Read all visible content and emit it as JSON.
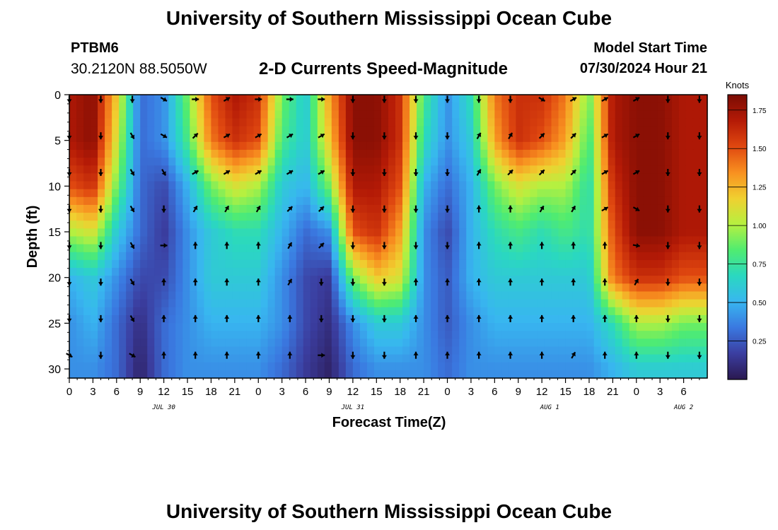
{
  "header": {
    "title": "University of Southern Mississippi Ocean Cube",
    "station_id": "PTBM6",
    "coordinates": "30.2120N  88.5050W",
    "subtitle": "2-D Currents Speed-Magnitude",
    "model_start_label": "Model Start Time",
    "model_start_value": "07/30/2024 Hour 21"
  },
  "footer": {
    "title": "University of Southern Mississippi Ocean Cube"
  },
  "chart_data": {
    "type": "heatmap",
    "title": "2-D Currents Speed-Magnitude",
    "xlabel": "Forecast Time(Z)",
    "ylabel": "Depth (ft)",
    "x_range_hours": [
      0,
      81
    ],
    "y_range_ft": [
      0,
      31
    ],
    "y_inverted": true,
    "x_tick_labels": [
      "0",
      "3",
      "6",
      "9",
      "12",
      "15",
      "18",
      "21",
      "0",
      "3",
      "6",
      "9",
      "12",
      "15",
      "18",
      "21",
      "0",
      "3",
      "6",
      "9",
      "12",
      "15",
      "18",
      "21",
      "0",
      "3",
      "6"
    ],
    "y_ticks": [
      0,
      5,
      10,
      15,
      20,
      25,
      30
    ],
    "date_labels": [
      {
        "hour": 12,
        "label": "JUL 30"
      },
      {
        "hour": 36,
        "label": "JUL 31"
      },
      {
        "hour": 61,
        "label": "AUG 1"
      },
      {
        "hour": 78,
        "label": "AUG 2"
      }
    ],
    "colorbar": {
      "label": "Knots",
      "min": 0,
      "max": 1.85,
      "ticks": [
        "0.25",
        "0.50",
        "0.75",
        "1.00",
        "1.25",
        "1.50",
        "1.75"
      ],
      "colors": [
        "#2a1850",
        "#3b3ea0",
        "#3a78e0",
        "#38b6f0",
        "#2ad8c0",
        "#50ec70",
        "#b6f040",
        "#f0d030",
        "#f89020",
        "#e04810",
        "#b41a06",
        "#7a0c04"
      ]
    },
    "speed_grid": {
      "hours": [
        0,
        3,
        6,
        9,
        12,
        15,
        18,
        21,
        24,
        27,
        30,
        33,
        36,
        39,
        42,
        45,
        48,
        51,
        54,
        57,
        60,
        63,
        66,
        69,
        72,
        75,
        78,
        81
      ],
      "depths_ft": [
        0,
        5,
        10,
        15,
        20,
        25,
        30
      ],
      "values": [
        [
          1.7,
          1.8,
          1.2,
          0.3,
          0.4,
          0.9,
          1.5,
          1.7,
          1.6,
          0.9,
          0.6,
          1.3,
          1.8,
          1.8,
          1.6,
          0.8,
          0.4,
          0.7,
          1.4,
          1.6,
          1.6,
          1.4,
          0.9,
          1.7,
          1.8,
          1.8,
          1.7,
          1.7
        ],
        [
          1.7,
          1.8,
          1.1,
          0.3,
          0.4,
          0.8,
          1.4,
          1.6,
          1.5,
          0.8,
          0.6,
          1.2,
          1.8,
          1.8,
          1.6,
          0.7,
          0.4,
          0.6,
          1.3,
          1.6,
          1.5,
          1.3,
          0.8,
          1.7,
          1.8,
          1.8,
          1.7,
          1.7
        ],
        [
          1.5,
          1.6,
          0.9,
          0.3,
          0.2,
          0.5,
          0.9,
          1.1,
          1.0,
          0.6,
          0.5,
          0.9,
          1.7,
          1.7,
          1.5,
          0.5,
          0.3,
          0.5,
          0.9,
          1.1,
          1.0,
          1.0,
          0.7,
          1.6,
          1.8,
          1.8,
          1.7,
          1.7
        ],
        [
          1.0,
          1.1,
          0.6,
          0.3,
          0.15,
          0.4,
          0.6,
          0.7,
          0.7,
          0.5,
          0.3,
          0.4,
          1.5,
          1.6,
          1.3,
          0.4,
          0.2,
          0.5,
          0.7,
          0.8,
          0.7,
          0.8,
          0.7,
          1.5,
          1.8,
          1.8,
          1.7,
          1.7
        ],
        [
          0.5,
          0.6,
          0.4,
          0.2,
          0.2,
          0.4,
          0.6,
          0.6,
          0.6,
          0.4,
          0.2,
          0.15,
          0.9,
          1.2,
          1.1,
          0.4,
          0.25,
          0.5,
          0.6,
          0.6,
          0.6,
          0.6,
          0.6,
          1.4,
          1.6,
          1.6,
          1.5,
          1.5
        ],
        [
          0.4,
          0.5,
          0.3,
          0.1,
          0.3,
          0.4,
          0.5,
          0.5,
          0.5,
          0.4,
          0.2,
          0.1,
          0.4,
          0.6,
          0.6,
          0.4,
          0.25,
          0.4,
          0.5,
          0.5,
          0.5,
          0.5,
          0.5,
          0.7,
          1.0,
          1.0,
          0.9,
          0.9
        ],
        [
          0.4,
          0.4,
          0.3,
          0.05,
          0.3,
          0.4,
          0.4,
          0.4,
          0.4,
          0.3,
          0.15,
          0.05,
          0.3,
          0.4,
          0.4,
          0.4,
          0.3,
          0.4,
          0.4,
          0.4,
          0.4,
          0.4,
          0.4,
          0.5,
          0.6,
          0.6,
          0.6,
          0.6
        ]
      ]
    },
    "current_vectors": {
      "hours": [
        0,
        4,
        8,
        12,
        16,
        20,
        24,
        28,
        32,
        36,
        40,
        44,
        48,
        52,
        56,
        60,
        64,
        68,
        72,
        76,
        80
      ],
      "depths_ft": [
        0.5,
        4.5,
        8.5,
        12.5,
        16.5,
        20.5,
        24.5,
        28.5
      ],
      "directions_deg": [
        [
          180,
          180,
          180,
          120,
          90,
          60,
          90,
          90,
          90,
          180,
          180,
          180,
          180,
          180,
          180,
          120,
          60,
          60,
          60,
          180,
          180
        ],
        [
          180,
          180,
          150,
          120,
          45,
          60,
          60,
          60,
          60,
          180,
          180,
          180,
          180,
          30,
          30,
          45,
          45,
          60,
          60,
          180,
          180
        ],
        [
          180,
          180,
          150,
          150,
          60,
          60,
          60,
          60,
          60,
          180,
          180,
          180,
          180,
          30,
          45,
          45,
          45,
          60,
          60,
          180,
          180
        ],
        [
          180,
          180,
          150,
          180,
          30,
          30,
          30,
          45,
          45,
          180,
          180,
          180,
          180,
          0,
          0,
          30,
          30,
          60,
          120,
          180,
          180
        ],
        [
          180,
          180,
          150,
          90,
          0,
          0,
          0,
          30,
          45,
          180,
          180,
          180,
          180,
          0,
          0,
          0,
          0,
          0,
          100,
          180,
          180
        ],
        [
          180,
          180,
          150,
          0,
          0,
          0,
          0,
          30,
          180,
          180,
          180,
          0,
          0,
          0,
          0,
          0,
          0,
          0,
          30,
          180,
          180
        ],
        [
          180,
          180,
          150,
          0,
          0,
          0,
          0,
          0,
          180,
          180,
          180,
          0,
          0,
          0,
          0,
          0,
          0,
          0,
          0,
          180,
          180
        ],
        [
          120,
          180,
          120,
          0,
          0,
          0,
          0,
          0,
          90,
          180,
          180,
          0,
          0,
          0,
          0,
          0,
          30,
          0,
          0,
          180,
          180
        ]
      ]
    }
  }
}
